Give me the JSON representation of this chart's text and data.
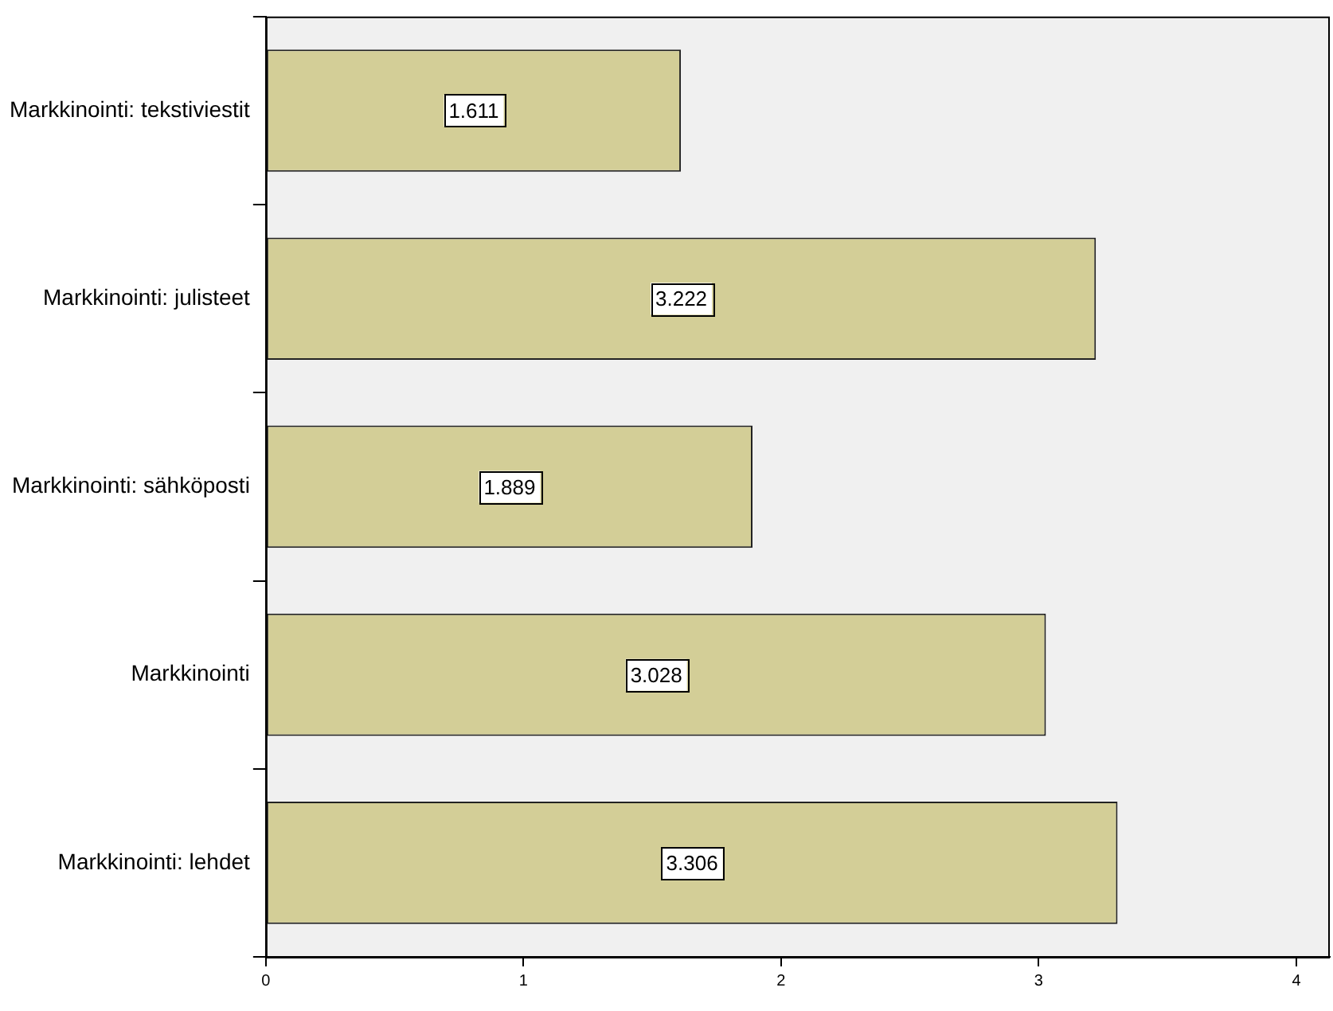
{
  "chart_data": {
    "type": "bar",
    "orientation": "horizontal",
    "categories": [
      "Markkinointi: tekstiviestit",
      "Markkinointi: julisteet",
      "Markkinointi: sähköposti",
      "Markkinointi",
      "Markkinointi: lehdet"
    ],
    "values": [
      1.611,
      3.222,
      1.889,
      3.028,
      3.306
    ],
    "color": "#d3ce97",
    "xlim": [
      0,
      4.13
    ],
    "xticks": [
      0,
      1,
      2,
      3,
      4
    ],
    "grid": false,
    "legend": false,
    "data_labels": true
  }
}
